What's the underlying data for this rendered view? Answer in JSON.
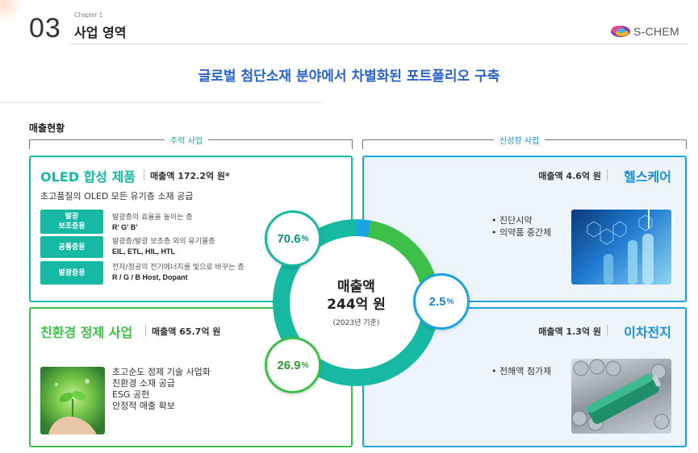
{
  "header": {
    "number": "03",
    "chapter": "Chapter 1",
    "title": "사업 영역",
    "logo_text": "S-CHEM"
  },
  "headline": "글로벌 첨단소재 분야에서 차별화된 포트폴리오 구축",
  "section_label": "매출현황",
  "groups": {
    "main": "주력 사업",
    "new": "신성장 사업"
  },
  "oled": {
    "title": "OLED 합성 제품",
    "sales": "매출액 172.2억 원*",
    "subtitle": "초고품질의 OLED 모든 유기층 소재 공급",
    "tags": [
      {
        "label_1": "발광",
        "label_2": "보조층용",
        "desc": "발광층의 효율을 높이는 층",
        "materials": "R' G' B'"
      },
      {
        "label_1": "공통층용",
        "label_2": "",
        "desc": "발광층/발광 보조층 외의 유기물층",
        "materials": "EIL, ETL, HIL, HTL"
      },
      {
        "label_1": "발광층용",
        "label_2": "",
        "desc": "전자/정공의 전기에너지를 빛으로 바꾸는 층",
        "materials": "R / G / B Host, Dopant"
      }
    ]
  },
  "eco": {
    "title": "친환경 정제 사업",
    "sales": "매출액 65.7억 원",
    "items": [
      "초고순도 정제 기술 사업화",
      "친환경 소재 공급",
      "ESG 공헌",
      "안정적 매출 확보"
    ]
  },
  "health": {
    "title": "헬스케어",
    "sales": "매출액 4.6억 원",
    "items": [
      "진단시약",
      "의약품 중간체"
    ]
  },
  "battery": {
    "title": "이차전지",
    "sales": "매출액 1.3억 원",
    "items": [
      "전해액 첨가제"
    ]
  },
  "donut": {
    "center_line_1": "매출액",
    "center_line_2": "244억 원",
    "center_note": "(2023년 기준)"
  },
  "shares": {
    "oled": {
      "value": "70.6",
      "unit": "%"
    },
    "eco": {
      "value": "26.9",
      "unit": "%"
    },
    "new": {
      "value": "2.5",
      "unit": "%"
    }
  },
  "colors": {
    "oled": "#18b9a3",
    "eco": "#3cc04a",
    "new": "#1aa5e0",
    "headline": "#2b63c9"
  },
  "icons": [
    "s-chem-logo-icon",
    "plant-in-hand-image",
    "lab-glassware-image",
    "battery-cells-image"
  ]
}
